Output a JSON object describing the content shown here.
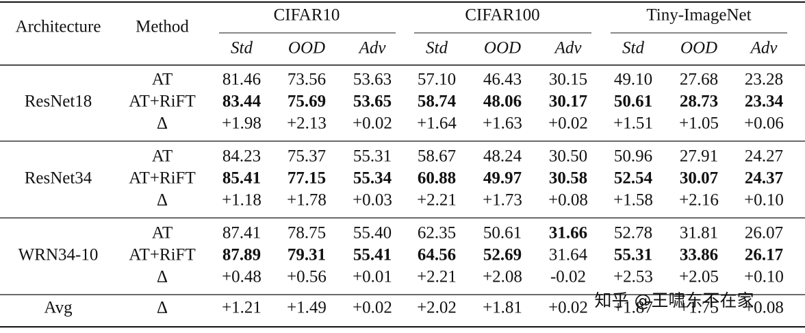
{
  "header": {
    "architecture": "Architecture",
    "method": "Method",
    "datasets": [
      "CIFAR10",
      "CIFAR100",
      "Tiny-ImageNet"
    ],
    "metrics": [
      "Std",
      "OOD",
      "Adv"
    ]
  },
  "groups": [
    {
      "architecture": "ResNet18",
      "rows": [
        {
          "method": "AT",
          "cells": [
            {
              "text": "81.46"
            },
            {
              "text": "73.56"
            },
            {
              "text": "53.63"
            },
            {
              "text": "57.10"
            },
            {
              "text": "46.43"
            },
            {
              "text": "30.15"
            },
            {
              "text": "49.10"
            },
            {
              "text": "27.68"
            },
            {
              "text": "23.28"
            }
          ]
        },
        {
          "method": "AT+RiFT",
          "bold": true,
          "cells": [
            {
              "text": "83.44"
            },
            {
              "text": "75.69"
            },
            {
              "text": "53.65"
            },
            {
              "text": "58.74"
            },
            {
              "text": "48.06"
            },
            {
              "text": "30.17"
            },
            {
              "text": "50.61"
            },
            {
              "text": "28.73"
            },
            {
              "text": "23.34"
            }
          ]
        },
        {
          "method": "Δ",
          "color": "#e8302a",
          "cells": [
            {
              "text": "+1.98"
            },
            {
              "text": "+2.13"
            },
            {
              "text": "+0.02"
            },
            {
              "text": "+1.64"
            },
            {
              "text": "+1.63"
            },
            {
              "text": "+0.02"
            },
            {
              "text": "+1.51"
            },
            {
              "text": "+1.05"
            },
            {
              "text": "+0.06"
            }
          ]
        }
      ]
    },
    {
      "architecture": "ResNet34",
      "rows": [
        {
          "method": "AT",
          "cells": [
            {
              "text": "84.23"
            },
            {
              "text": "75.37"
            },
            {
              "text": "55.31"
            },
            {
              "text": "58.67"
            },
            {
              "text": "48.24"
            },
            {
              "text": "30.50"
            },
            {
              "text": "50.96"
            },
            {
              "text": "27.91"
            },
            {
              "text": "24.27"
            }
          ]
        },
        {
          "method": "AT+RiFT",
          "bold": true,
          "cells": [
            {
              "text": "85.41"
            },
            {
              "text": "77.15"
            },
            {
              "text": "55.34"
            },
            {
              "text": "60.88"
            },
            {
              "text": "49.97"
            },
            {
              "text": "30.58"
            },
            {
              "text": "52.54"
            },
            {
              "text": "30.07"
            },
            {
              "text": "24.37"
            }
          ]
        },
        {
          "method": "Δ",
          "color": "#e8302a",
          "cells": [
            {
              "text": "+1.18"
            },
            {
              "text": "+1.78"
            },
            {
              "text": "+0.03"
            },
            {
              "text": "+2.21"
            },
            {
              "text": "+1.73"
            },
            {
              "text": "+0.08"
            },
            {
              "text": "+1.58"
            },
            {
              "text": "+2.16"
            },
            {
              "text": "+0.10"
            }
          ]
        }
      ]
    },
    {
      "architecture": "WRN34-10",
      "rows": [
        {
          "method": "AT",
          "cells": [
            {
              "text": "87.41"
            },
            {
              "text": "78.75"
            },
            {
              "text": "55.40"
            },
            {
              "text": "62.35"
            },
            {
              "text": "50.61"
            },
            {
              "text": "31.66",
              "bold": true
            },
            {
              "text": "52.78"
            },
            {
              "text": "31.81"
            },
            {
              "text": "26.07"
            }
          ]
        },
        {
          "method": "AT+RiFT",
          "bold": true,
          "cells": [
            {
              "text": "87.89"
            },
            {
              "text": "79.31"
            },
            {
              "text": "55.41"
            },
            {
              "text": "64.56"
            },
            {
              "text": "52.69"
            },
            {
              "text": "31.64",
              "bold": false
            },
            {
              "text": "55.31"
            },
            {
              "text": "33.86"
            },
            {
              "text": "26.17"
            }
          ]
        },
        {
          "method": "Δ",
          "color": "#e8302a",
          "cells": [
            {
              "text": "+0.48"
            },
            {
              "text": "+0.56"
            },
            {
              "text": "+0.01"
            },
            {
              "text": "+2.21"
            },
            {
              "text": "+2.08"
            },
            {
              "text": "-0.02",
              "color": "#1a9a2a"
            },
            {
              "text": "+2.53"
            },
            {
              "text": "+2.05"
            },
            {
              "text": "+0.10"
            }
          ]
        }
      ]
    },
    {
      "architecture": "Avg",
      "rows": [
        {
          "method": "Δ",
          "color": "#e8302a",
          "cells": [
            {
              "text": "+1.21"
            },
            {
              "text": "+1.49"
            },
            {
              "text": "+0.02"
            },
            {
              "text": "+2.02"
            },
            {
              "text": "+1.81"
            },
            {
              "text": "+0.02"
            },
            {
              "text": "+1.87"
            },
            {
              "text": "+1.75"
            },
            {
              "text": "+0.08"
            }
          ]
        }
      ]
    }
  ],
  "watermark": "知乎 @王啸东不在家"
}
